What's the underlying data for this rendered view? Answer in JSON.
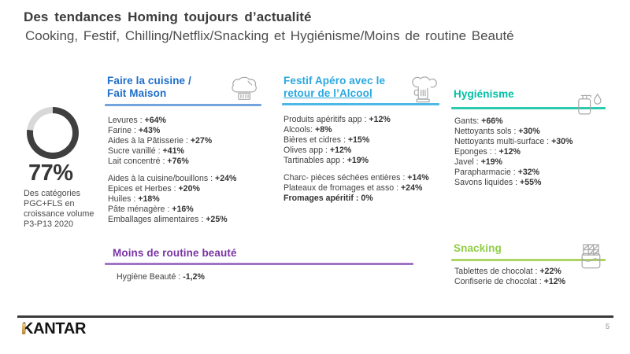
{
  "slide": {
    "title": "Des tendances Homing toujours d’actualité",
    "subtitle": "Cooking, Festif, Chilling/Netflix/Snacking et Hygiénisme/Moins de routine Beauté",
    "logo": "KANTAR",
    "page_number": "5"
  },
  "stat": {
    "value": "77%",
    "percent": 77,
    "caption": "Des catégories PGC+FLS en croissance volume P3-P13 2020",
    "colors": {
      "arc": "#3f3f3f",
      "rest": "#d8d8d8"
    }
  },
  "sections": [
    {
      "id": "faire-la-cuisine",
      "heading_line1": "Faire la cuisine /",
      "heading_line2": "Fait Maison",
      "icon": "chef-hat-icon",
      "accent": "#1e6ec8",
      "underline": "#74a4de",
      "groups": [
        [
          {
            "label": "Levures :",
            "value": "+64%"
          },
          {
            "label": "Farine :",
            "value": "+43%"
          },
          {
            "label": "Aides à la Pâtisserie :",
            "value": "+27%"
          },
          {
            "label": "Sucre vanillé :",
            "value": "+41%"
          },
          {
            "label": "Lait concentré :",
            "value": "+76%"
          }
        ],
        [
          {
            "label": "Aides à la cuisine/bouillons :",
            "value": "+24%"
          },
          {
            "label": "Epices et Herbes :",
            "value": "+20%"
          },
          {
            "label": "Huiles :",
            "value": "+18%"
          },
          {
            "label": "Pâte ménagère :",
            "value": "+16%"
          },
          {
            "label": "Emballages alimentaires :",
            "value": "+25%"
          }
        ]
      ]
    },
    {
      "id": "festif-apero",
      "heading_line1": "Festif Apéro avec le",
      "heading_line2": "retour de l’Alcool",
      "icon": "beer-mug-icon",
      "accent": "#2aa7e0",
      "underline": "#4db7e6",
      "groups": [
        [
          {
            "label": "Produits apéritifs app :",
            "value": "+12%"
          },
          {
            "label": "Alcools:",
            "value": "+8%"
          },
          {
            "label": "Bières et cidres :",
            "value": "+15%"
          },
          {
            "label": "Olives app :",
            "value": "+12%"
          },
          {
            "label": "Tartinables app :",
            "value": "+19%"
          }
        ],
        [
          {
            "label": "Charc- pièces séchées entières :",
            "value": "+14%"
          },
          {
            "label": "Plateaux de fromages et asso :",
            "value": "+24%"
          },
          {
            "label": "Fromages apéritif :",
            "value": "0%",
            "bold": true
          }
        ]
      ]
    },
    {
      "id": "hygienisme",
      "heading_line1": "Hygiénisme",
      "icon": "soap-dispenser-icon",
      "accent": "#00bfa4",
      "underline": "#2bc9ae",
      "groups": [
        [
          {
            "label": "Gants:",
            "value": "+66%"
          },
          {
            "label": "Nettoyants sols :",
            "value": "+30%"
          },
          {
            "label": "Nettoyants multi-surface :",
            "value": "+30%"
          },
          {
            "label": "Eponges : :",
            "value": "+12%"
          },
          {
            "label": "Javel :",
            "value": "+19%"
          },
          {
            "label": "Parapharmacie :",
            "value": "+32%"
          },
          {
            "label": "Savons liquides :",
            "value": "+55%"
          }
        ]
      ]
    },
    {
      "id": "moins-de-routine-beaute",
      "heading_line1": "Moins de routine beauté",
      "accent": "#7a35a5",
      "underline": "#a272c4",
      "groups": [
        [
          {
            "label": "Hygiène Beauté :",
            "value": "-1,2%"
          }
        ]
      ]
    },
    {
      "id": "snacking",
      "heading_line1": "Snacking",
      "icon": "chocolate-bar-icon",
      "accent": "#8fce44",
      "underline": "#aed466",
      "groups": [
        [
          {
            "label": "Tablettes de chocolat :",
            "value": "+22%"
          },
          {
            "label": "Confiserie de chocolat :",
            "value": "+12%"
          }
        ]
      ]
    }
  ]
}
